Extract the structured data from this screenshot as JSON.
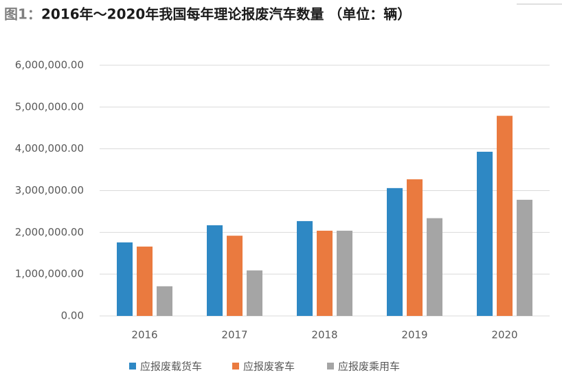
{
  "chart_data": {
    "type": "bar",
    "label": "图1：",
    "title": "2016年～2020年我国每年理论报废汽车数量 （单位：辆）",
    "categories": [
      "2016",
      "2017",
      "2018",
      "2019",
      "2020"
    ],
    "series": [
      {
        "name": "应报废载货车",
        "color": "#2e88c4",
        "values": [
          1760000,
          2170000,
          2270000,
          3060000,
          3930000
        ]
      },
      {
        "name": "应报废客车",
        "color": "#ea7a3f",
        "values": [
          1660000,
          1920000,
          2040000,
          3270000,
          4790000
        ]
      },
      {
        "name": "应报废乘用车",
        "color": "#a5a5a5",
        "values": [
          710000,
          1090000,
          2040000,
          2340000,
          2780000
        ]
      }
    ],
    "ylim": [
      0,
      6000000
    ],
    "yticks": [
      {
        "value": 0,
        "label": "0.00"
      },
      {
        "value": 1000000,
        "label": "1,000,000.00"
      },
      {
        "value": 2000000,
        "label": "2,000,000.00"
      },
      {
        "value": 3000000,
        "label": "3,000,000.00"
      },
      {
        "value": 4000000,
        "label": "4,000,000.00"
      },
      {
        "value": 5000000,
        "label": "5,000,000.00"
      },
      {
        "value": 6000000,
        "label": "6,000,000.00"
      }
    ],
    "grid": true,
    "legend": "bottom"
  }
}
